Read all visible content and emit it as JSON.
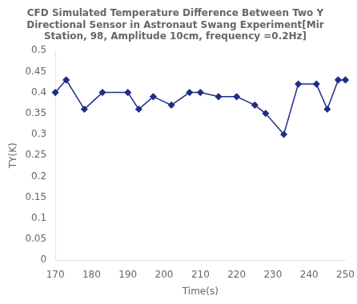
{
  "chart_data": {
    "type": "line",
    "title": "CFD Simulated Temperature Difference Between Two Y\nDirectional Sensor in Astronaut Swang Experiment[Mir\nStation, 98, Amplitude 10cm, frequency =0.2Hz]",
    "xlabel": "Time(s)",
    "ylabel": "TY(K)",
    "x": [
      170,
      173,
      178,
      183,
      190,
      193,
      197,
      202,
      207,
      210,
      215,
      220,
      225,
      228,
      233,
      237,
      242,
      245,
      248,
      250
    ],
    "values": [
      0.4,
      0.43,
      0.36,
      0.4,
      0.4,
      0.36,
      0.39,
      0.37,
      0.4,
      0.4,
      0.39,
      0.39,
      0.37,
      0.35,
      0.3,
      0.42,
      0.42,
      0.36,
      0.43,
      0.43
    ],
    "color": "#1F2D8A",
    "marker": "diamond",
    "line_style": "solid",
    "xlim": [
      170,
      250
    ],
    "ylim": [
      0,
      0.5
    ],
    "xticks": [
      170,
      180,
      190,
      200,
      210,
      220,
      230,
      240,
      250
    ],
    "yticks": [
      0,
      0.05,
      0.1,
      0.15,
      0.2,
      0.25,
      0.3,
      0.35,
      0.4,
      0.45,
      0.5
    ],
    "grid": false
  }
}
